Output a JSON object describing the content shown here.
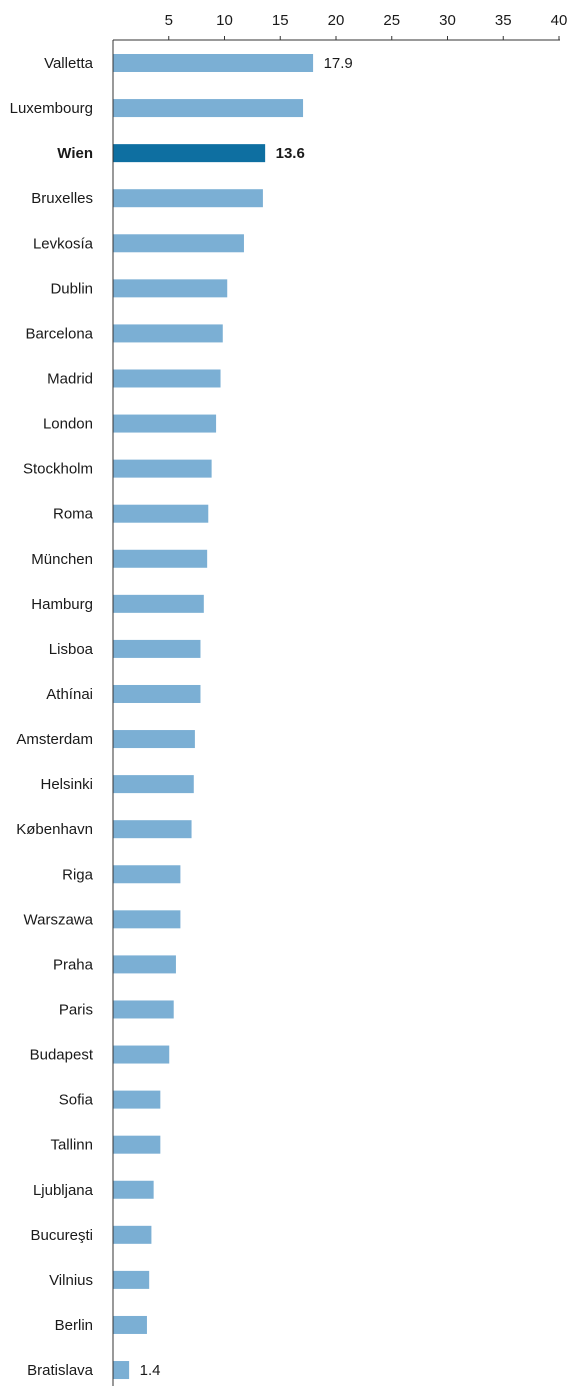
{
  "colors": {
    "bar": "#7bafd4",
    "bar_highlight": "#0e6fa1",
    "axis": "#333333"
  },
  "chart_data": {
    "type": "bar",
    "orientation": "horizontal",
    "title": "",
    "xlabel": "",
    "ylabel": "",
    "xlim": [
      0,
      40
    ],
    "x_ticks": [
      5,
      10,
      15,
      20,
      25,
      30,
      35,
      40
    ],
    "x_axis_position": "top",
    "grid": false,
    "legend": "none",
    "highlight": "Wien",
    "categories": [
      "Valletta",
      "Luxembourg",
      "Wien",
      "Bruxelles",
      "Levkosía",
      "Dublin",
      "Barcelona",
      "Madrid",
      "London",
      "Stockholm",
      "Roma",
      "München",
      "Hamburg",
      "Lisboa",
      "Athínai",
      "Amsterdam",
      "Helsinki",
      "København",
      "Riga",
      "Warszawa",
      "Praha",
      "Paris",
      "Budapest",
      "Sofia",
      "Tallinn",
      "Ljubljana",
      "Bucureşti",
      "Vilnius",
      "Berlin",
      "Bratislava"
    ],
    "values": [
      17.9,
      17.0,
      13.6,
      13.4,
      11.7,
      10.2,
      9.8,
      9.6,
      9.2,
      8.8,
      8.5,
      8.4,
      8.1,
      7.8,
      7.8,
      7.3,
      7.2,
      7.0,
      6.0,
      6.0,
      5.6,
      5.4,
      5.0,
      4.2,
      4.2,
      3.6,
      3.4,
      3.2,
      3.0,
      1.4
    ],
    "data_labels": [
      {
        "category": "Valletta",
        "text": "17.9"
      },
      {
        "category": "Wien",
        "text": "13.6"
      },
      {
        "category": "Bratislava",
        "text": "1.4"
      }
    ]
  }
}
